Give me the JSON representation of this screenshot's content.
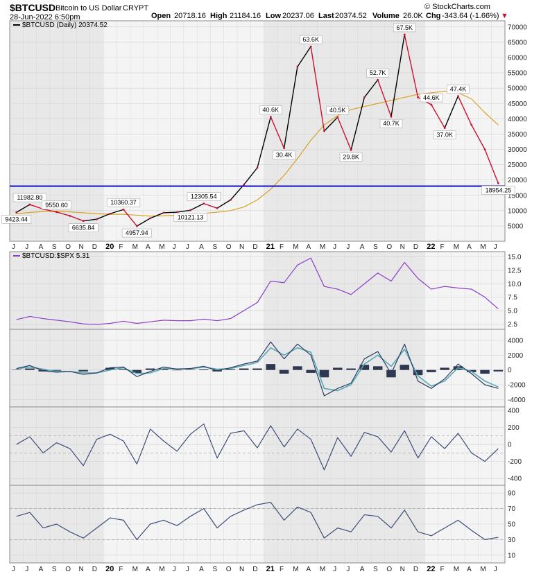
{
  "header": {
    "symbol": "$BTCUSD",
    "name": "Bitcoin to US Dollar",
    "exchange": "CRYPT",
    "date": "28-Jun-2022 6:50pm",
    "open_label": "Open",
    "open": "20718.16",
    "high_label": "High",
    "high": "21184.16",
    "low_label": "Low",
    "low": "20237.06",
    "last_label": "Last",
    "last": "20374.52",
    "volume_label": "Volume",
    "volume": "26.0K",
    "chg_label": "Chg",
    "chg": "-343.64 (-1.66%)",
    "chg_arrow": "▼",
    "watermark": "© StockCharts.com"
  },
  "colors": {
    "price_up": "#000000",
    "price_down": "#c8102e",
    "ma": "#d9a020",
    "support": "#1010c0",
    "ratio": "#8a3dc8",
    "macd": "#2a3e63",
    "signal": "#5aa7b4",
    "osc": "#3b4d78",
    "shade": "#e8e8e8"
  },
  "months_bottom": [
    "J",
    "J",
    "A",
    "S",
    "O",
    "N",
    "D",
    "20",
    "F",
    "M",
    "A",
    "M",
    "J",
    "J",
    "A",
    "S",
    "O",
    "N",
    "D",
    "21",
    "F",
    "M",
    "A",
    "M",
    "J",
    "J",
    "A",
    "S",
    "O",
    "N",
    "D",
    "22",
    "F",
    "M",
    "A",
    "M",
    "J"
  ],
  "chart_data": [
    {
      "type": "line",
      "panel": "price",
      "legend": "$BTCUSD (Daily) 20374.52",
      "ylim": [
        0,
        72000
      ],
      "yticks": [
        5000,
        10000,
        15000,
        20000,
        25000,
        30000,
        35000,
        40000,
        45000,
        50000,
        55000,
        60000,
        65000,
        70000
      ],
      "x": [
        "2019-06",
        "2019-07",
        "2019-08",
        "2019-09",
        "2019-10",
        "2019-11",
        "2019-12",
        "2020-01",
        "2020-02",
        "2020-03",
        "2020-04",
        "2020-05",
        "2020-06",
        "2020-07",
        "2020-08",
        "2020-09",
        "2020-10",
        "2020-11",
        "2020-12",
        "2021-01",
        "2021-02",
        "2021-03",
        "2021-04",
        "2021-05",
        "2021-06",
        "2021-07",
        "2021-08",
        "2021-09",
        "2021-10",
        "2021-11",
        "2021-12",
        "2022-01",
        "2022-02",
        "2022-03",
        "2022-04",
        "2022-05",
        "2022-06"
      ],
      "series": [
        {
          "values": [
            9423.44,
            11982.8,
            10500,
            9550.6,
            8300,
            6635.84,
            7200,
            9000,
            10360.37,
            4957.94,
            7500,
            9300,
            9500,
            10121.13,
            12305.54,
            10800,
            13500,
            18500,
            24000,
            40600,
            30400,
            57000,
            63600,
            36000,
            40500,
            29800,
            47000,
            52700,
            40700,
            67500,
            47000,
            44600,
            37000,
            47400,
            38000,
            30000,
            18954.25
          ]
        },
        {
          "name": "MA",
          "values": [
            9000,
            9400,
            9700,
            9800,
            9600,
            9300,
            9000,
            8800,
            8800,
            8500,
            8200,
            8300,
            8500,
            8700,
            9100,
            9500,
            10000,
            11200,
            13500,
            17000,
            21500,
            27000,
            33000,
            38000,
            41000,
            43000,
            44000,
            45000,
            46000,
            47000,
            48000,
            48500,
            49000,
            48500,
            46500,
            42000,
            38000
          ]
        }
      ],
      "annotations": [
        "9423.44",
        "11982.80",
        "9550.60",
        "6635.84",
        "10360.37",
        "4957.94",
        "12305.54",
        "10121.13",
        "40.6K",
        "30.4K",
        "63.6K",
        "40.5K",
        "29.8K",
        "52.7K",
        "40.7K",
        "67.5K",
        "44.6K",
        "37.0K",
        "47.4K",
        "18954.25"
      ],
      "support_level": 18000
    },
    {
      "type": "line",
      "panel": "ratio",
      "legend": "$BTCUSD:$SPX 5.31",
      "ylim": [
        1.5,
        16
      ],
      "yticks": [
        2.5,
        5.0,
        7.5,
        10.0,
        12.5,
        15.0
      ],
      "values": [
        3.3,
        3.9,
        3.5,
        3.2,
        2.9,
        2.5,
        2.4,
        2.6,
        3.0,
        2.6,
        2.9,
        3.2,
        3.1,
        3.1,
        3.4,
        3.1,
        3.5,
        5.0,
        6.5,
        10.5,
        10.2,
        13.5,
        14.8,
        9.5,
        9.0,
        8.0,
        10.0,
        12.0,
        10.5,
        14.0,
        11.0,
        9.0,
        9.5,
        9.2,
        9.0,
        7.5,
        5.31
      ]
    },
    {
      "type": "line",
      "panel": "macd",
      "ylim": [
        -5000,
        5500
      ],
      "yticks": [
        -4000,
        -2000,
        0,
        2000,
        4000
      ],
      "series": [
        {
          "name": "MACD",
          "values": [
            200,
            600,
            -100,
            -300,
            -200,
            -600,
            -400,
            300,
            400,
            -900,
            -200,
            400,
            100,
            200,
            500,
            -100,
            300,
            800,
            1200,
            3800,
            1500,
            3500,
            2000,
            -3500,
            -2500,
            -1800,
            1500,
            2500,
            -500,
            3500,
            -1500,
            -2500,
            -1200,
            800,
            -500,
            -2000,
            -2500
          ]
        },
        {
          "name": "Signal",
          "values": [
            150,
            400,
            100,
            -200,
            -200,
            -400,
            -400,
            0,
            300,
            -500,
            -400,
            200,
            150,
            150,
            400,
            100,
            200,
            600,
            1000,
            3000,
            2000,
            3000,
            2400,
            -2500,
            -2800,
            -2000,
            800,
            2000,
            500,
            2800,
            -800,
            -2200,
            -1500,
            300,
            -200,
            -1500,
            -2300
          ]
        }
      ]
    },
    {
      "type": "line",
      "panel": "osc1",
      "ylim": [
        -480,
        440
      ],
      "yticks": [
        -400,
        -200,
        0,
        200,
        400
      ],
      "values": [
        0,
        90,
        -100,
        20,
        -50,
        -250,
        60,
        120,
        40,
        -230,
        180,
        40,
        -80,
        120,
        240,
        -160,
        130,
        160,
        -40,
        220,
        -30,
        180,
        60,
        -300,
        80,
        -140,
        140,
        90,
        -90,
        160,
        -160,
        90,
        -50,
        130,
        -100,
        -200,
        -50
      ]
    },
    {
      "type": "line",
      "panel": "osc2",
      "ylim": [
        0,
        100
      ],
      "yticks": [
        10,
        30,
        50,
        70,
        90
      ],
      "values": [
        60,
        65,
        45,
        50,
        40,
        32,
        45,
        58,
        55,
        30,
        50,
        55,
        48,
        60,
        70,
        45,
        60,
        68,
        75,
        78,
        55,
        72,
        65,
        32,
        45,
        40,
        62,
        60,
        45,
        68,
        40,
        35,
        45,
        55,
        42,
        30,
        33
      ]
    }
  ]
}
